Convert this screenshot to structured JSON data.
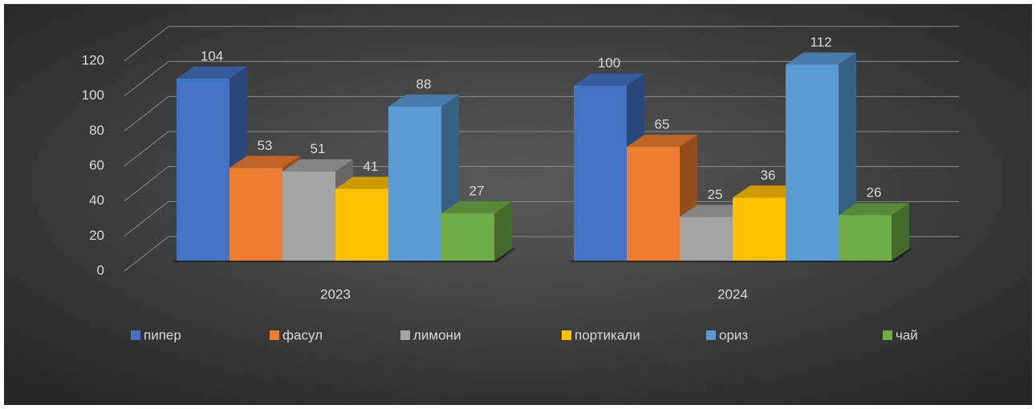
{
  "chart_data": {
    "type": "bar3d",
    "categories": [
      "2023",
      "2024"
    ],
    "series": [
      {
        "name": "пипер",
        "color": "#4472c4",
        "values": [
          104,
          100
        ]
      },
      {
        "name": "фасул",
        "color": "#ed7d31",
        "values": [
          53,
          65
        ]
      },
      {
        "name": "лимони",
        "color": "#a5a5a5",
        "values": [
          51,
          25
        ]
      },
      {
        "name": "портикали",
        "color": "#ffc000",
        "values": [
          41,
          36
        ]
      },
      {
        "name": "ориз",
        "color": "#5b9bd5",
        "values": [
          88,
          112
        ]
      },
      {
        "name": "чай",
        "color": "#70ad47",
        "values": [
          27,
          26
        ]
      }
    ],
    "ylim": [
      0,
      120
    ],
    "yticks": [
      0,
      20,
      40,
      60,
      80,
      100,
      120
    ],
    "grid": true,
    "legend": "bottom"
  }
}
